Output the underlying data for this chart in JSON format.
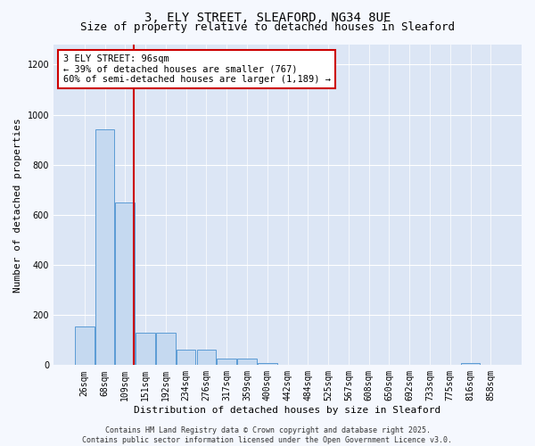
{
  "title1": "3, ELY STREET, SLEAFORD, NG34 8UE",
  "title2": "Size of property relative to detached houses in Sleaford",
  "xlabel": "Distribution of detached houses by size in Sleaford",
  "ylabel": "Number of detached properties",
  "bin_labels": [
    "26sqm",
    "68sqm",
    "109sqm",
    "151sqm",
    "192sqm",
    "234sqm",
    "276sqm",
    "317sqm",
    "359sqm",
    "400sqm",
    "442sqm",
    "484sqm",
    "525sqm",
    "567sqm",
    "608sqm",
    "650sqm",
    "692sqm",
    "733sqm",
    "775sqm",
    "816sqm",
    "858sqm"
  ],
  "bar_values": [
    155,
    940,
    650,
    130,
    130,
    60,
    60,
    25,
    25,
    10,
    0,
    0,
    0,
    0,
    0,
    0,
    0,
    0,
    0,
    10,
    0
  ],
  "bar_color": "#c5d9f0",
  "bar_edge_color": "#5b9bd5",
  "red_line_x": 2.42,
  "annotation_text": "3 ELY STREET: 96sqm\n← 39% of detached houses are smaller (767)\n60% of semi-detached houses are larger (1,189) →",
  "annotation_box_color": "#ffffff",
  "annotation_box_edge": "#cc0000",
  "ylim": [
    0,
    1280
  ],
  "yticks": [
    0,
    200,
    400,
    600,
    800,
    1000,
    1200
  ],
  "background_color": "#dce6f5",
  "fig_background_color": "#f5f8fe",
  "footer_text": "Contains HM Land Registry data © Crown copyright and database right 2025.\nContains public sector information licensed under the Open Government Licence v3.0.",
  "title_fontsize": 10,
  "subtitle_fontsize": 9,
  "ylabel_fontsize": 8,
  "xlabel_fontsize": 8,
  "tick_fontsize": 7,
  "footer_fontsize": 6
}
